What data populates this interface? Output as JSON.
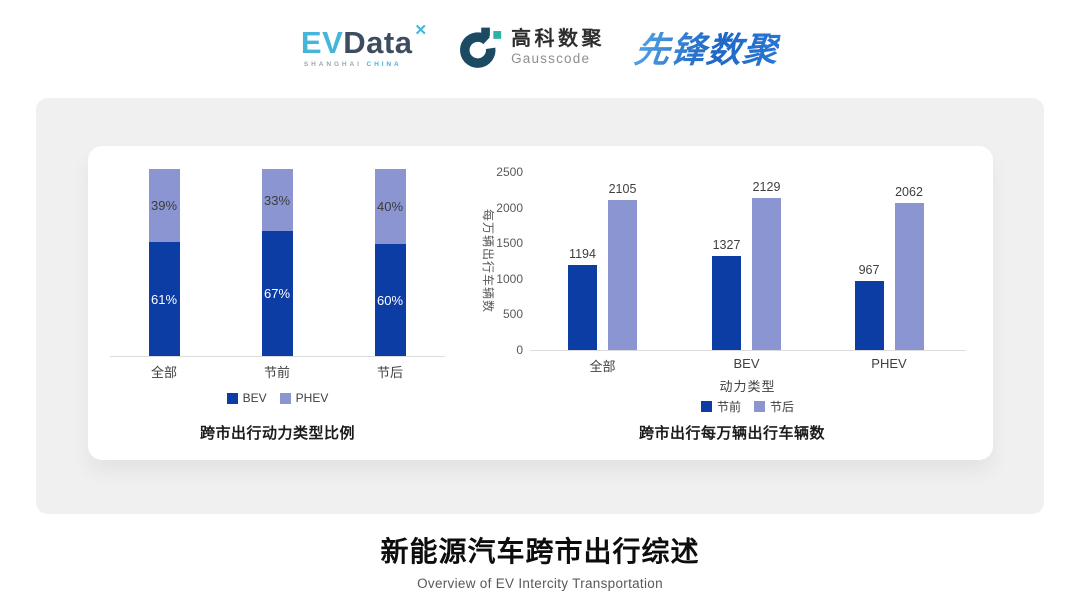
{
  "header": {
    "evdata": {
      "ev": "EV",
      "data": "Data",
      "mark": "✕",
      "sub1": "SHANGHAI",
      "sub2": "CHINA"
    },
    "gausscode": {
      "cn": "高科数聚",
      "en": "Gausscode"
    },
    "pioneer": {
      "text": "先锋数聚"
    }
  },
  "footer": {
    "title": "新能源汽车跨市出行综述",
    "subtitle": "Overview of EV Intercity Transportation"
  },
  "colors": {
    "dark_blue": "#0b3da5",
    "light_periwinkle": "#8b95d1",
    "axis_line": "#dcdcdc",
    "tick_text": "#595959",
    "label_text": "#404040"
  },
  "chart_data": [
    {
      "type": "bar",
      "subtype": "stacked_percent",
      "title": "跨市出行动力类型比例",
      "categories": [
        "全部",
        "节前",
        "节后"
      ],
      "series": [
        {
          "name": "BEV",
          "color": "#0b3da5",
          "values": [
            61,
            67,
            60
          ]
        },
        {
          "name": "PHEV",
          "color": "#8b95d1",
          "values": [
            39,
            33,
            40
          ]
        }
      ],
      "value_format": "percent",
      "legend_position": "bottom",
      "grid": false
    },
    {
      "type": "bar",
      "subtype": "grouped",
      "title": "跨市出行每万辆出行车辆数",
      "categories": [
        "全部",
        "BEV",
        "PHEV"
      ],
      "xlabel": "动力类型",
      "ylabel": "每万辆出行车辆数",
      "series": [
        {
          "name": "节前",
          "color": "#0b3da5",
          "values": [
            1194,
            1327,
            967
          ]
        },
        {
          "name": "节后",
          "color": "#8b95d1",
          "values": [
            2105,
            2129,
            2062
          ]
        }
      ],
      "yticks": [
        0,
        500,
        1000,
        1500,
        2000,
        2500
      ],
      "ylim": [
        0,
        2500
      ],
      "legend_position": "bottom",
      "grid": false
    }
  ]
}
